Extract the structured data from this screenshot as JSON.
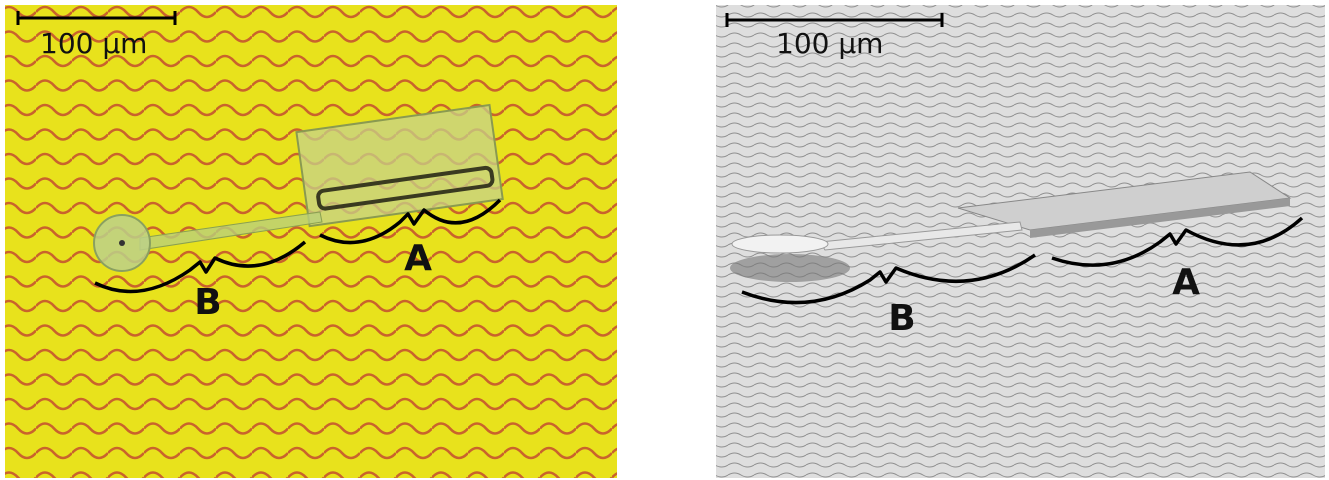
{
  "panels": [
    {
      "scale_label": "100 µm",
      "labels": [
        "B",
        "A"
      ]
    },
    {
      "scale_label": "100 µm",
      "labels": [
        "B",
        "A"
      ]
    }
  ]
}
